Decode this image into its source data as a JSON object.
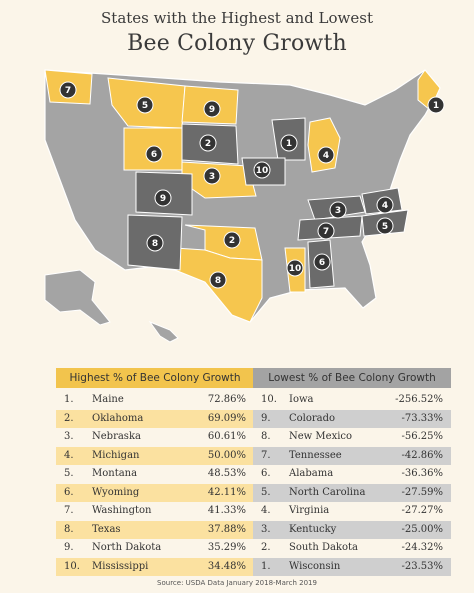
{
  "title_line1": "States with the Highest and Lowest",
  "title_line2": "Bee Colony Growth",
  "source": "Source: USDA Data January 2018-March 2019",
  "colors": {
    "highest": "#f6c64e",
    "lowest": "#6b6b6b",
    "neutral": "#a4a4a4",
    "background": "#fbf5e9",
    "badge": "#333333"
  },
  "icons": [
    "bee-icon",
    "honeycomb-pattern"
  ],
  "chart_data": [
    {
      "type": "table",
      "title": "Highest % of Bee Colony Growth",
      "rows": [
        {
          "rank": "1.",
          "state": "Maine",
          "value": "72.86%"
        },
        {
          "rank": "2.",
          "state": "Oklahoma",
          "value": "69.09%"
        },
        {
          "rank": "3.",
          "state": "Nebraska",
          "value": "60.61%"
        },
        {
          "rank": "4.",
          "state": "Michigan",
          "value": "50.00%"
        },
        {
          "rank": "5.",
          "state": "Montana",
          "value": "48.53%"
        },
        {
          "rank": "6.",
          "state": "Wyoming",
          "value": "42.11%"
        },
        {
          "rank": "7.",
          "state": "Washington",
          "value": "41.33%"
        },
        {
          "rank": "8.",
          "state": "Texas",
          "value": "37.88%"
        },
        {
          "rank": "9.",
          "state": "North Dakota",
          "value": "35.29%"
        },
        {
          "rank": "10.",
          "state": "Mississippi",
          "value": "34.48%"
        }
      ]
    },
    {
      "type": "table",
      "title": "Lowest % of Bee Colony Growth",
      "rows": [
        {
          "rank": "10.",
          "state": "Iowa",
          "value": "-256.52%"
        },
        {
          "rank": "9.",
          "state": "Colorado",
          "value": "-73.33%"
        },
        {
          "rank": "8.",
          "state": "New Mexico",
          "value": "-56.25%"
        },
        {
          "rank": "7.",
          "state": "Tennessee",
          "value": "-42.86%"
        },
        {
          "rank": "6.",
          "state": "Alabama",
          "value": "-36.36%"
        },
        {
          "rank": "5.",
          "state": "North Carolina",
          "value": "-27.59%"
        },
        {
          "rank": "4.",
          "state": "Virginia",
          "value": "-27.27%"
        },
        {
          "rank": "3.",
          "state": "Kentucky",
          "value": "-25.00%"
        },
        {
          "rank": "2.",
          "state": "South Dakota",
          "value": "-24.32%"
        },
        {
          "rank": "1.",
          "state": "Wisconsin",
          "value": "-23.53%"
        }
      ]
    }
  ],
  "map_badges": [
    {
      "state": "Maine",
      "label": "1",
      "group": "highest"
    },
    {
      "state": "Oklahoma",
      "label": "2",
      "group": "highest"
    },
    {
      "state": "Nebraska",
      "label": "3",
      "group": "highest"
    },
    {
      "state": "Michigan",
      "label": "4",
      "group": "highest"
    },
    {
      "state": "Montana",
      "label": "5",
      "group": "highest"
    },
    {
      "state": "Wyoming",
      "label": "6",
      "group": "highest"
    },
    {
      "state": "Washington",
      "label": "7",
      "group": "highest"
    },
    {
      "state": "Texas",
      "label": "8",
      "group": "highest"
    },
    {
      "state": "North Dakota",
      "label": "9",
      "group": "highest"
    },
    {
      "state": "Mississippi",
      "label": "10",
      "group": "highest"
    },
    {
      "state": "Wisconsin",
      "label": "1",
      "group": "lowest"
    },
    {
      "state": "South Dakota",
      "label": "2",
      "group": "lowest"
    },
    {
      "state": "Kentucky",
      "label": "3",
      "group": "lowest"
    },
    {
      "state": "Virginia",
      "label": "4",
      "group": "lowest"
    },
    {
      "state": "North Carolina",
      "label": "5",
      "group": "lowest"
    },
    {
      "state": "Alabama",
      "label": "6",
      "group": "lowest"
    },
    {
      "state": "Tennessee",
      "label": "7",
      "group": "lowest"
    },
    {
      "state": "New Mexico",
      "label": "8",
      "group": "lowest"
    },
    {
      "state": "Colorado",
      "label": "9",
      "group": "lowest"
    },
    {
      "state": "Iowa",
      "label": "10",
      "group": "lowest"
    }
  ]
}
